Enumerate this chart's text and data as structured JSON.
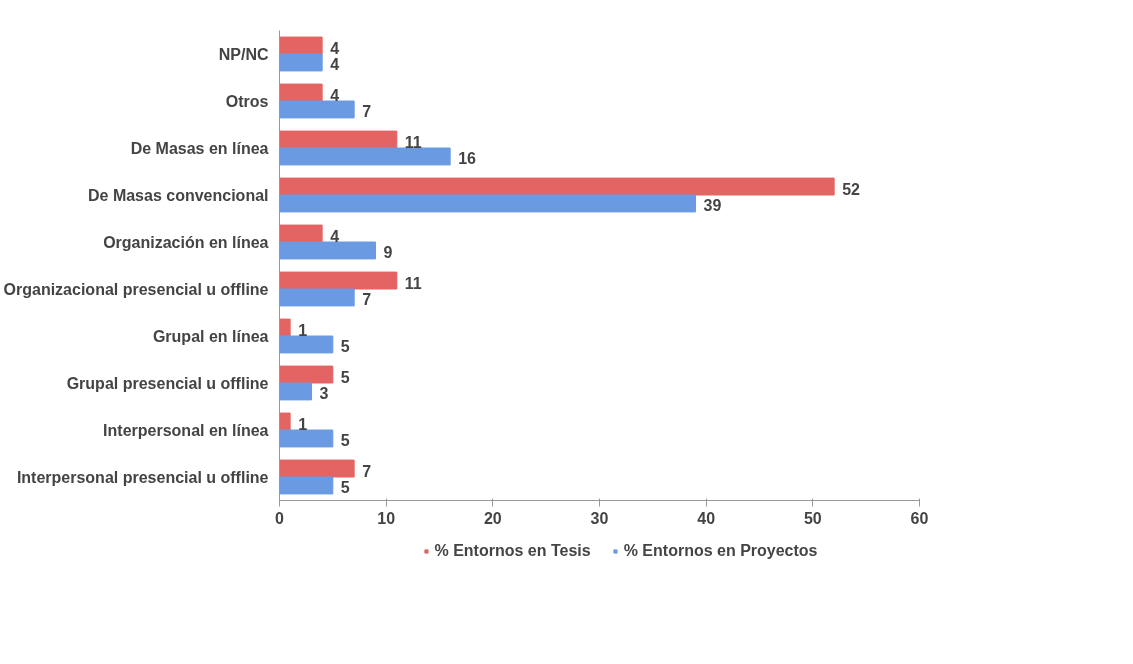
{
  "chart_data": {
    "type": "bar",
    "orientation": "horizontal",
    "categories": [
      "NP/NC",
      "Otros",
      "De Masas en línea",
      "De Masas convencional",
      "Organización en línea",
      "Organizacional presencial u offline",
      "Grupal en línea",
      "Grupal presencial u offline",
      "Interpersonal en línea",
      "Interpersonal presencial u offline"
    ],
    "series": [
      {
        "name": "% Entornos en Tesis",
        "color": "#e46464",
        "values": [
          4,
          4,
          11,
          52,
          4,
          11,
          1,
          5,
          1,
          7
        ]
      },
      {
        "name": "% Entornos en Proyectos",
        "color": "#6a9be2",
        "values": [
          4,
          7,
          16,
          39,
          9,
          7,
          5,
          3,
          5,
          5
        ]
      }
    ],
    "xlim": [
      0,
      60
    ],
    "xticks": [
      0,
      10,
      20,
      30,
      40,
      50,
      60
    ],
    "data_labels": true,
    "grid": false,
    "legend": "bottom"
  }
}
